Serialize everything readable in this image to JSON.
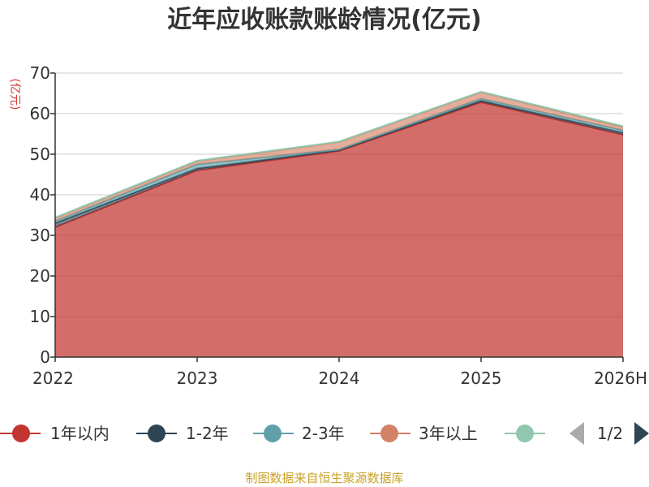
{
  "title": "近年应收账款账龄情况(亿元)",
  "source": "制图数据来自恒生聚源数据库",
  "chart_data": {
    "type": "area",
    "stacked": true,
    "x": [
      "2022",
      "2023",
      "2024",
      "2025",
      "2026H"
    ],
    "ylabel": "(亿元)",
    "ylim": [
      0,
      70
    ],
    "yticks": [
      0,
      10,
      20,
      30,
      40,
      50,
      60,
      70
    ],
    "grid": true,
    "series": [
      {
        "name": "1年以内",
        "color": "#c23531",
        "values": [
          32.0,
          46.0,
          50.8,
          62.8,
          54.8
        ]
      },
      {
        "name": "1-2年",
        "color": "#2f4554",
        "values": [
          1.0,
          0.5,
          0.2,
          0.4,
          0.5
        ]
      },
      {
        "name": "2-3年",
        "color": "#61a0a8",
        "values": [
          0.5,
          1.0,
          0.2,
          0.5,
          0.6
        ]
      },
      {
        "name": "3年以上",
        "color": "#d48265",
        "values": [
          0.8,
          0.8,
          1.8,
          1.6,
          0.8
        ]
      },
      {
        "name": "",
        "color": "#91c7ae",
        "values": [
          0.1,
          0.1,
          0.1,
          0.1,
          0.2
        ]
      }
    ],
    "legend": {
      "position": "bottom",
      "page": "1/2"
    }
  }
}
